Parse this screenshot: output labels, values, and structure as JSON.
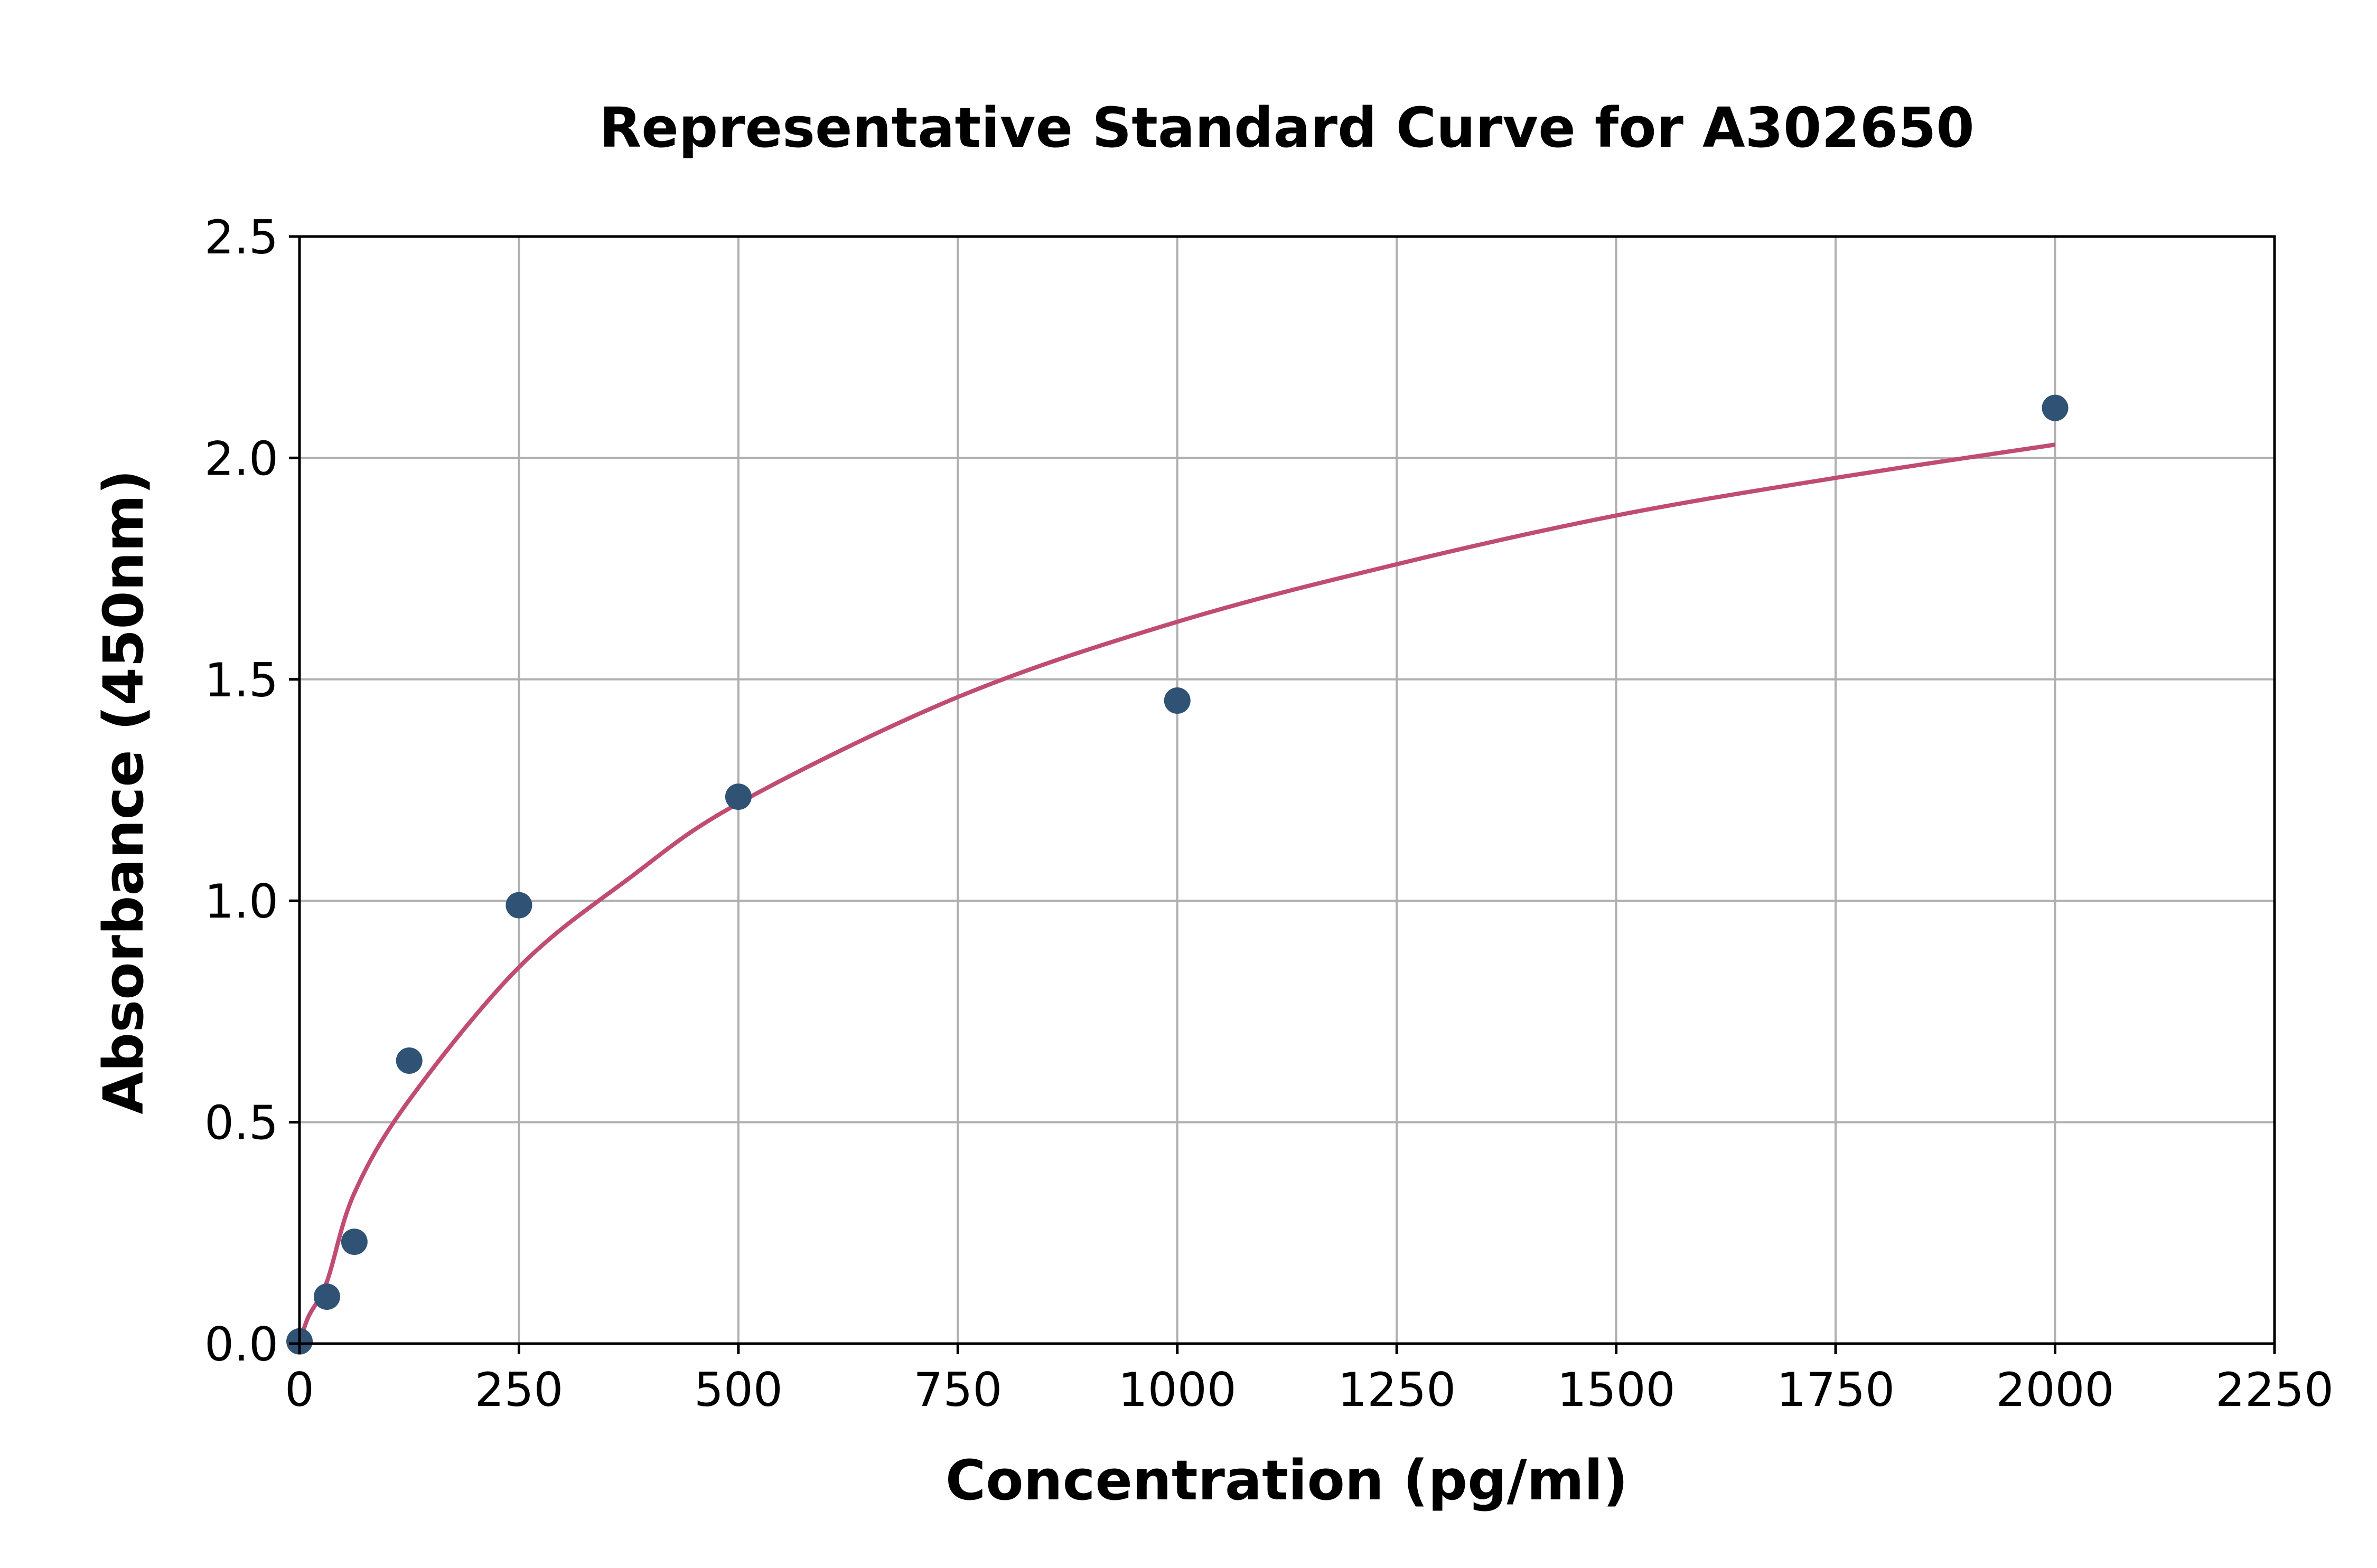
{
  "chart_data": {
    "type": "scatter",
    "title": "Representative Standard Curve for A302650",
    "xlabel": "Concentration (pg/ml)",
    "ylabel": "Absorbance (450nm)",
    "xlim": [
      0,
      2250
    ],
    "ylim": [
      0,
      2.5
    ],
    "xticks": [
      "0",
      "250",
      "500",
      "750",
      "1000",
      "1250",
      "1500",
      "1750",
      "2000",
      "2250"
    ],
    "yticks": [
      "0.0",
      "0.5",
      "1.0",
      "1.5",
      "2.0",
      "2.5"
    ],
    "grid": true,
    "points": {
      "x": [
        0,
        31.25,
        62.5,
        125,
        250,
        500,
        1000,
        2000
      ],
      "y": [
        0.005,
        0.106,
        0.23,
        0.639,
        0.99,
        1.235,
        1.452,
        2.113
      ],
      "color": "#2f5275"
    },
    "fit_curve": {
      "x": [
        0,
        10,
        31.25,
        62.5,
        125,
        250,
        375,
        500,
        750,
        1000,
        1250,
        1500,
        1750,
        2000
      ],
      "y": [
        0,
        0.06,
        0.14,
        0.34,
        0.55,
        0.85,
        1.05,
        1.22,
        1.46,
        1.63,
        1.76,
        1.87,
        1.955,
        2.03
      ],
      "color": "#c04c72"
    }
  }
}
